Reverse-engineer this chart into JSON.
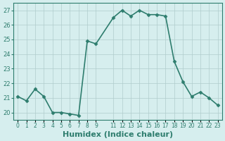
{
  "x": [
    0,
    1,
    2,
    3,
    4,
    5,
    6,
    7,
    8,
    9,
    11,
    12,
    13,
    14,
    15,
    16,
    17,
    18,
    19,
    20,
    21,
    22,
    23
  ],
  "y": [
    21.1,
    20.8,
    21.6,
    21.1,
    20.0,
    20.0,
    19.9,
    19.8,
    24.9,
    24.7,
    26.5,
    27.0,
    26.6,
    27.0,
    26.7,
    26.7,
    26.6,
    23.5,
    22.1,
    21.1,
    21.4,
    21.0,
    20.5
  ],
  "line_color": "#2e7d6e",
  "marker": "D",
  "marker_size": 2.5,
  "line_width": 1.2,
  "xlabel": "Humidex (Indice chaleur)",
  "xlabel_fontsize": 8,
  "ylim": [
    19.5,
    27.5
  ],
  "xlim": [
    -0.5,
    23.5
  ],
  "yticks": [
    20,
    21,
    22,
    23,
    24,
    25,
    26,
    27
  ],
  "xticks": [
    0,
    1,
    2,
    3,
    4,
    5,
    6,
    7,
    8,
    9,
    11,
    12,
    13,
    14,
    15,
    16,
    17,
    18,
    19,
    20,
    21,
    22,
    23
  ],
  "xtick_labels": [
    "0",
    "1",
    "2",
    "3",
    "4",
    "5",
    "6",
    "7",
    "8",
    "9",
    "11",
    "12",
    "13",
    "14",
    "15",
    "16",
    "17",
    "18",
    "19",
    "20",
    "21",
    "22",
    "23"
  ],
  "bg_color": "#d6eeee",
  "grid_color": "#b0cccc",
  "tick_fontsize": 6
}
